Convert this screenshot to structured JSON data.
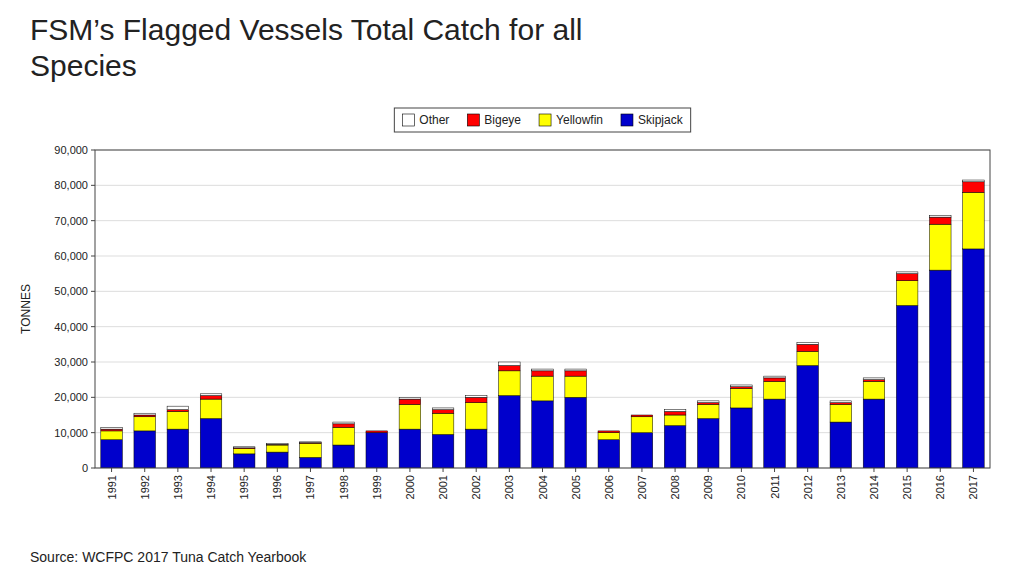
{
  "chart_data": {
    "type": "bar",
    "stacked": true,
    "title": "FSM’s Flagged Vessels Total Catch for all\nSpecies",
    "y_label": "TONNES",
    "source": "Source: WCFPC 2017 Tuna Catch Yearbook",
    "categories": [
      "1991",
      "1992",
      "1993",
      "1994",
      "1995",
      "1996",
      "1997",
      "1998",
      "1999",
      "2000",
      "2001",
      "2002",
      "2003",
      "2004",
      "2005",
      "2006",
      "2007",
      "2008",
      "2009",
      "2010",
      "2011",
      "2012",
      "2013",
      "2014",
      "2015",
      "2016",
      "2017"
    ],
    "series": [
      {
        "name": "Skipjack",
        "color": "#0000CC",
        "values": [
          8000,
          10500,
          11000,
          14000,
          4000,
          4500,
          3000,
          6500,
          10000,
          11000,
          9500,
          11000,
          20500,
          19000,
          20000,
          8000,
          10000,
          12000,
          14000,
          17000,
          19500,
          29000,
          13000,
          19500,
          46000,
          56000,
          62000
        ]
      },
      {
        "name": "Yellowfin",
        "color": "#FFFF00",
        "values": [
          2500,
          4000,
          5000,
          5500,
          1500,
          2000,
          4000,
          5000,
          0,
          7000,
          6000,
          7500,
          7000,
          7000,
          6000,
          2000,
          4500,
          3000,
          4000,
          5500,
          5000,
          4000,
          5000,
          5000,
          7000,
          13000,
          16000
        ]
      },
      {
        "name": "Bigeye",
        "color": "#FF0000",
        "values": [
          500,
          500,
          500,
          1000,
          200,
          200,
          200,
          1000,
          500,
          1500,
          1000,
          1500,
          1500,
          1500,
          1500,
          500,
          500,
          1000,
          500,
          500,
          1000,
          2000,
          500,
          500,
          2000,
          2000,
          3000
        ]
      },
      {
        "name": "Other",
        "color": "#FFFFFF",
        "values": [
          500,
          500,
          1000,
          500,
          300,
          300,
          200,
          500,
          0,
          500,
          500,
          500,
          1000,
          500,
          500,
          0,
          0,
          500,
          500,
          500,
          500,
          500,
          500,
          500,
          500,
          500,
          500
        ]
      }
    ],
    "ylim": [
      0,
      90000
    ],
    "yticks": [
      0,
      {
        "value": 10000,
        "label": "10,000"
      },
      {
        "value": 20000,
        "label": "20,000"
      },
      {
        "value": 30000,
        "label": "30,000"
      },
      {
        "value": 40000,
        "label": "40,000"
      },
      {
        "value": 50000,
        "label": "50,000"
      },
      {
        "value": 60000,
        "label": "60,000"
      },
      {
        "value": 70000,
        "label": "70,000"
      },
      {
        "value": 80000,
        "label": "80,000"
      },
      {
        "value": 90000,
        "label": "90,000"
      }
    ],
    "grid": true,
    "legend": "top"
  }
}
